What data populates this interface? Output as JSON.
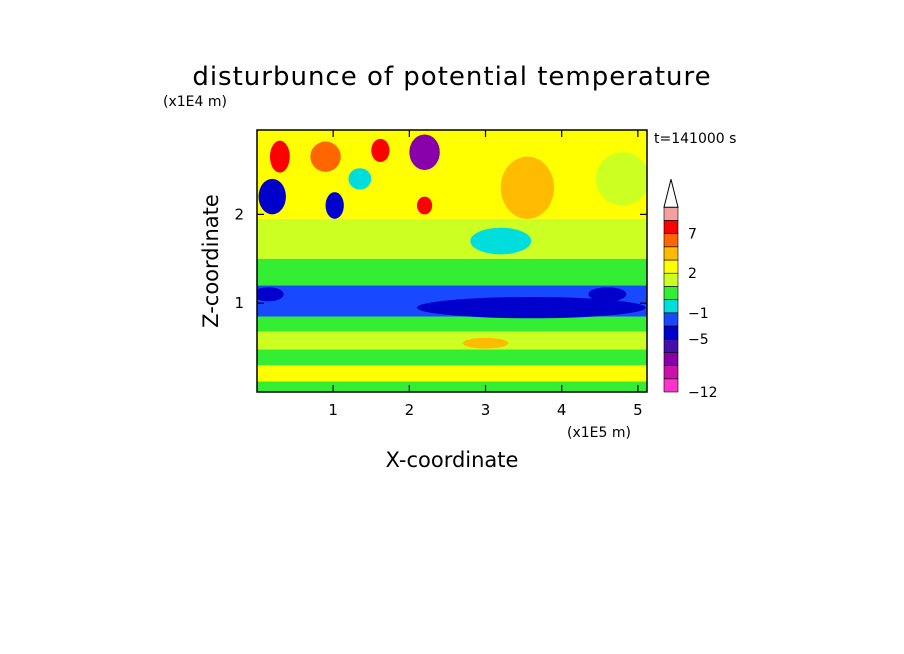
{
  "chart_data": {
    "type": "heatmap",
    "title": "disturbunce of potential temperature",
    "time_label": "t=141000 s",
    "xlabel": "X-coordinate",
    "ylabel": "Z-coordinate",
    "x_unit": "(x1E5 m)",
    "y_unit": "(x1E4 m)",
    "xlim": [
      0,
      5.12
    ],
    "ylim": [
      0,
      2.95
    ],
    "x_ticks": [
      1,
      2,
      3,
      4,
      5
    ],
    "x_tick_labels": [
      "1",
      "2",
      "3",
      "4",
      "5"
    ],
    "y_ticks": [
      1,
      2
    ],
    "y_tick_labels": [
      "1",
      "2"
    ],
    "colorbar": {
      "levels": [
        -12,
        -10,
        -8,
        -6,
        -5,
        -3,
        -1,
        0,
        1,
        2,
        4,
        5,
        7,
        9,
        11
      ],
      "colors": [
        "#ff33cc",
        "#cc11aa",
        "#8800aa",
        "#4410aa",
        "#0000cc",
        "#1848ff",
        "#00dddd",
        "#33ee33",
        "#ccff22",
        "#ffff00",
        "#ffbb00",
        "#ff6600",
        "#ff0000",
        "#f4a0a0",
        "#ffffff"
      ],
      "labeled_levels": [
        -12,
        -5,
        -1,
        2,
        7
      ],
      "tick_labels": [
        "−12",
        "−5",
        "−1",
        "2",
        "7"
      ],
      "extend_max": true
    },
    "field_bands": [
      {
        "z_range": [
          0.0,
          0.12
        ],
        "value": 0.5
      },
      {
        "z_range": [
          0.12,
          0.3
        ],
        "value": 2.5
      },
      {
        "z_range": [
          0.3,
          0.48
        ],
        "value": 0.5
      },
      {
        "z_range": [
          0.48,
          0.68
        ],
        "value": 1.5
      },
      {
        "z_range": [
          0.68,
          0.85
        ],
        "value": 0.5
      },
      {
        "z_range": [
          0.85,
          1.2
        ],
        "value": -2
      },
      {
        "z_range": [
          1.2,
          1.5
        ],
        "value": 0.5
      },
      {
        "z_range": [
          1.5,
          1.95
        ],
        "value": 1.5
      },
      {
        "z_range": [
          1.95,
          2.95
        ],
        "value": 3
      }
    ],
    "features": [
      {
        "x": 3.6,
        "z": 0.95,
        "rx": 1.5,
        "rz": 0.12,
        "value": -4
      },
      {
        "x": 0.15,
        "z": 1.1,
        "rx": 0.2,
        "rz": 0.08,
        "value": -4
      },
      {
        "x": 0.3,
        "z": 2.65,
        "rx": 0.13,
        "rz": 0.18,
        "value": 8
      },
      {
        "x": 0.9,
        "z": 2.65,
        "rx": 0.2,
        "rz": 0.17,
        "value": 6
      },
      {
        "x": 1.62,
        "z": 2.72,
        "rx": 0.12,
        "rz": 0.13,
        "value": 8
      },
      {
        "x": 2.2,
        "z": 2.7,
        "rx": 0.2,
        "rz": 0.2,
        "value": -8
      },
      {
        "x": 0.2,
        "z": 2.2,
        "rx": 0.18,
        "rz": 0.2,
        "value": -5
      },
      {
        "x": 1.02,
        "z": 2.1,
        "rx": 0.12,
        "rz": 0.15,
        "value": -5
      },
      {
        "x": 1.35,
        "z": 2.4,
        "rx": 0.15,
        "rz": 0.12,
        "value": -1
      },
      {
        "x": 3.55,
        "z": 2.3,
        "rx": 0.35,
        "rz": 0.35,
        "value": 4
      },
      {
        "x": 3.2,
        "z": 1.7,
        "rx": 0.4,
        "rz": 0.15,
        "value": -1
      },
      {
        "x": 4.8,
        "z": 2.4,
        "rx": 0.35,
        "rz": 0.3,
        "value": 1.5
      },
      {
        "x": 2.2,
        "z": 2.1,
        "rx": 0.1,
        "rz": 0.1,
        "value": 8
      },
      {
        "x": 4.6,
        "z": 1.1,
        "rx": 0.25,
        "rz": 0.08,
        "value": -4
      },
      {
        "x": 3.0,
        "z": 0.55,
        "rx": 0.3,
        "rz": 0.06,
        "value": 4
      }
    ]
  }
}
